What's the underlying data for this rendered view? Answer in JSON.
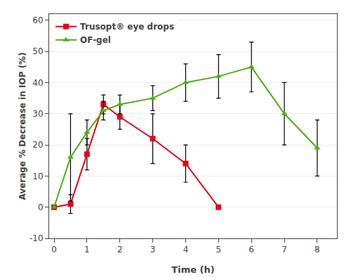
{
  "chart_data": {
    "type": "line",
    "x_label": "Time (h)",
    "y_label": "Average % Decrease in IOP (%)",
    "series": [
      {
        "name": "Trusopt® eye drops",
        "color": "#e8001c",
        "marker": "square",
        "line_style": "solid",
        "x": [
          0,
          0.5,
          1,
          1.5,
          2,
          3,
          4,
          5
        ],
        "values": [
          0,
          1,
          17,
          33,
          29,
          22,
          14,
          0
        ],
        "error": [
          0,
          3,
          5,
          3,
          4,
          8,
          6,
          0
        ]
      },
      {
        "name": "OF-gel",
        "color": "#4db012",
        "marker": "triangle-up",
        "line_style": "solid",
        "x": [
          0,
          0.5,
          1,
          1.5,
          2,
          3,
          4,
          5,
          6,
          7,
          8
        ],
        "values": [
          0,
          16,
          24,
          31,
          33,
          35,
          40,
          42,
          45,
          30,
          19
        ],
        "error": [
          0,
          14,
          4,
          3,
          3,
          4,
          6,
          7,
          8,
          10,
          9
        ]
      }
    ],
    "error_color": "black",
    "xlim": [
      -0.15,
      8.6
    ],
    "ylim": [
      -10,
      62
    ],
    "xticks": [
      0,
      1,
      2,
      3,
      4,
      5,
      6,
      7,
      8
    ],
    "yticks": [
      -10,
      0,
      10,
      20,
      30,
      40,
      50,
      60
    ],
    "grid": "y",
    "legend": "upper left"
  }
}
